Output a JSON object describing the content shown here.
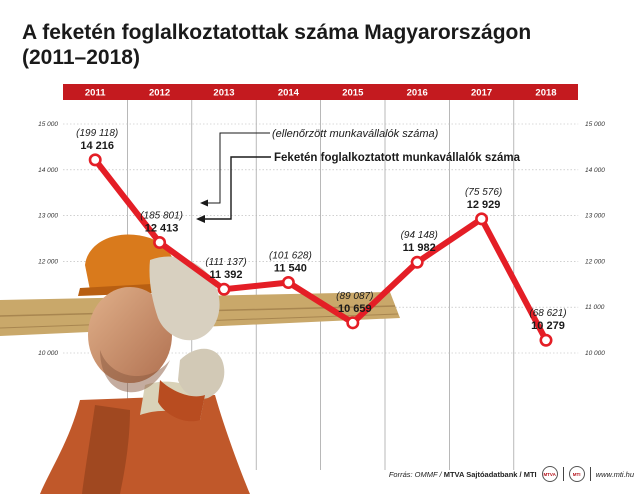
{
  "title_line1": "A feketén foglalkoztatottak száma Magyarországon",
  "title_line2": "(2011–2018)",
  "legend": {
    "secondary": "(ellenőrzött munkavállalók száma)",
    "primary": "Feketén foglalkoztatott munkavállalók száma"
  },
  "chart_data": {
    "type": "line",
    "x": [
      "2011",
      "2012",
      "2013",
      "2014",
      "2015",
      "2016",
      "2017",
      "2018"
    ],
    "series": [
      {
        "name": "Feketén foglalkoztatott munkavállalók száma",
        "values": [
          14216,
          12413,
          11392,
          11540,
          10659,
          11982,
          12929,
          10279
        ],
        "labels": [
          "14 216",
          "12 413",
          "11 392",
          "11 540",
          "10 659",
          "11 982",
          "12 929",
          "10 279"
        ],
        "color": "#e41e26"
      }
    ],
    "checked_workers": [
      "(199 118)",
      "(185 801)",
      "(111 137)",
      "(101 628)",
      "(89 087)",
      "(94 148)",
      "(75 576)",
      "(68 621)"
    ],
    "ylim": [
      10000,
      15000
    ],
    "yticks": [
      "10 000",
      "11 000",
      "12 000",
      "13 000",
      "14 000",
      "15 000"
    ],
    "grid": true,
    "header_band_color": "#c41a1f"
  },
  "footer": {
    "source_prefix": "Forrás: OMMF / ",
    "source_bold": "MTVA Sajtóadatbank / MTI",
    "logo1": "MTVA",
    "logo2": "MTI",
    "url": "www.mti.hu"
  }
}
